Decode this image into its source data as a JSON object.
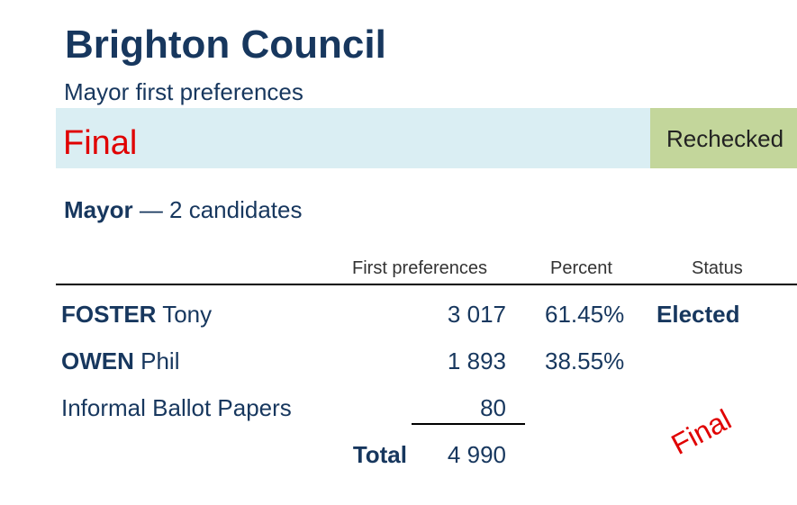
{
  "header": {
    "title": "Brighton Council",
    "subtitle": "Mayor first preferences"
  },
  "banner": {
    "status": "Final",
    "check": "Rechecked"
  },
  "section": {
    "office": "Mayor",
    "description": "— 2 candidates"
  },
  "table": {
    "columns": [
      "First preferences",
      "Percent",
      "Status"
    ],
    "rows": [
      {
        "surname": "FOSTER",
        "given": "Tony",
        "votes": "3 017",
        "percent": "61.45%",
        "status": "Elected"
      },
      {
        "surname": "OWEN",
        "given": "Phil",
        "votes": "1 893",
        "percent": "38.55%"
      }
    ],
    "informal": {
      "label": "Informal Ballot Papers",
      "votes": "80"
    },
    "total": {
      "label": "Total",
      "votes": "4 990"
    }
  },
  "stamp": "Final"
}
